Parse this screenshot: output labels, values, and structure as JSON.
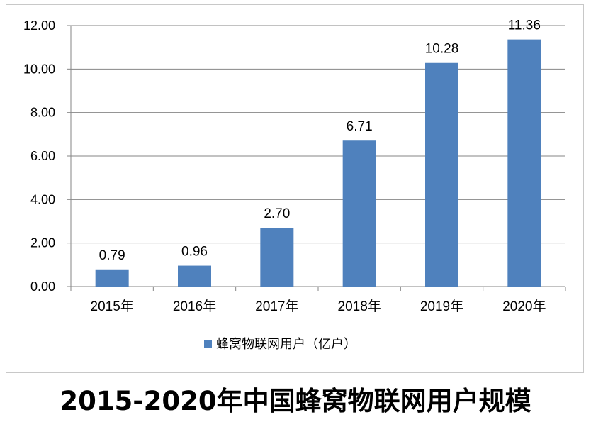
{
  "chart_data": {
    "type": "bar",
    "categories": [
      "2015年",
      "2016年",
      "2017年",
      "2018年",
      "2019年",
      "2020年"
    ],
    "series": [
      {
        "name": "蜂窝物联网用户（亿户）",
        "values": [
          0.79,
          0.96,
          2.7,
          6.71,
          10.28,
          11.36
        ],
        "value_labels": [
          "0.79",
          "0.96",
          "2.70",
          "6.71",
          "10.28",
          "11.36"
        ]
      }
    ],
    "ylim": [
      0,
      12
    ],
    "yticks": [
      "0.00",
      "2.00",
      "4.00",
      "6.00",
      "8.00",
      "10.00",
      "12.00"
    ],
    "grid": true,
    "legend_position": "bottom",
    "bar_color": "#4f81bd"
  },
  "caption": "2015-2020年中国蜂窝物联网用户规模"
}
